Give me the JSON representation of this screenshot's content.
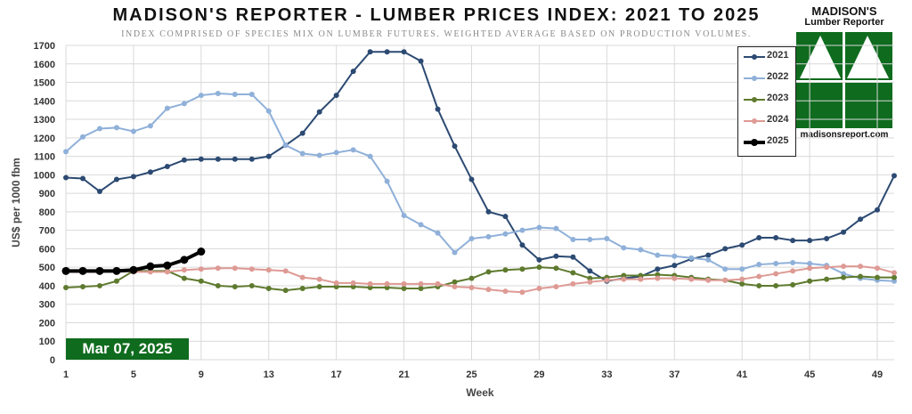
{
  "header": {
    "title": "MADISON'S REPORTER - LUMBER PRICES INDEX: 2021 TO 2025",
    "subtitle": "INDEX COMPRISED OF SPECIES MIX ON LUMBER FUTURES. WEIGHTED AVERAGE BASED ON PRODUCTION VOLUMES."
  },
  "logo": {
    "name_line1": "MADISON'S",
    "name_line2": "Lumber Reporter",
    "footer": "madisonsreport.com",
    "color": "#0f6b1e"
  },
  "badge": {
    "date": "Mar 07, 2025",
    "color": "#0f6b1e"
  },
  "chart_data": {
    "type": "line",
    "title": "MADISON'S REPORTER - LUMBER PRICES INDEX: 2021 TO 2025",
    "subtitle": "INDEX COMPRISED OF SPECIES MIX ON LUMBER FUTURES. WEIGHTED AVERAGE BASED ON PRODUCTION VOLUMES.",
    "xlabel": "Week",
    "ylabel": "US$ per 1000 fbm",
    "xlim": [
      1,
      50
    ],
    "ylim": [
      0,
      1700
    ],
    "x_ticks": [
      1,
      5,
      9,
      13,
      17,
      21,
      25,
      29,
      33,
      37,
      41,
      45,
      49
    ],
    "y_ticks": [
      0,
      100,
      200,
      300,
      400,
      500,
      600,
      700,
      800,
      900,
      1000,
      1100,
      1200,
      1300,
      1400,
      1500,
      1600,
      1700
    ],
    "grid": true,
    "legend_position": "top-right",
    "series": [
      {
        "name": "2021",
        "color": "#2c4a72",
        "values": [
          985,
          980,
          910,
          975,
          990,
          1015,
          1045,
          1080,
          1085,
          1085,
          1085,
          1085,
          1100,
          1160,
          1225,
          1340,
          1430,
          1560,
          1665,
          1665,
          1665,
          1615,
          1355,
          1155,
          975,
          800,
          775,
          620,
          540,
          560,
          555,
          480,
          425,
          440,
          450,
          490,
          510,
          545,
          565,
          600,
          620,
          660,
          660,
          645,
          645,
          655,
          690,
          760,
          810,
          995
        ]
      },
      {
        "name": "2022",
        "color": "#8fb0d9",
        "values": [
          1125,
          1205,
          1250,
          1255,
          1235,
          1265,
          1360,
          1385,
          1430,
          1440,
          1435,
          1435,
          1345,
          1160,
          1115,
          1105,
          1120,
          1135,
          1100,
          965,
          780,
          730,
          685,
          580,
          655,
          665,
          680,
          700,
          715,
          710,
          650,
          650,
          655,
          605,
          595,
          565,
          560,
          550,
          540,
          490,
          490,
          515,
          520,
          525,
          520,
          510,
          465,
          440,
          430,
          425
        ]
      },
      {
        "name": "2023",
        "color": "#5e7a2e",
        "values": [
          390,
          395,
          400,
          425,
          480,
          480,
          480,
          440,
          425,
          400,
          395,
          400,
          385,
          375,
          385,
          395,
          395,
          395,
          390,
          390,
          385,
          385,
          395,
          420,
          440,
          475,
          485,
          490,
          500,
          495,
          470,
          440,
          445,
          455,
          455,
          460,
          455,
          445,
          435,
          430,
          410,
          400,
          400,
          405,
          425,
          435,
          445,
          450,
          445,
          445
        ]
      },
      {
        "name": "2024",
        "color": "#de9a94",
        "values": [
          475,
          475,
          475,
          480,
          475,
          475,
          475,
          485,
          490,
          495,
          495,
          490,
          485,
          480,
          445,
          435,
          415,
          415,
          410,
          410,
          410,
          410,
          410,
          395,
          390,
          380,
          370,
          365,
          385,
          395,
          410,
          420,
          430,
          435,
          435,
          440,
          440,
          435,
          430,
          430,
          435,
          450,
          465,
          480,
          495,
          500,
          505,
          505,
          495,
          470
        ]
      },
      {
        "name": "2025",
        "color": "#000000",
        "values": [
          480,
          480,
          480,
          480,
          485,
          505,
          510,
          540,
          585
        ]
      }
    ]
  }
}
